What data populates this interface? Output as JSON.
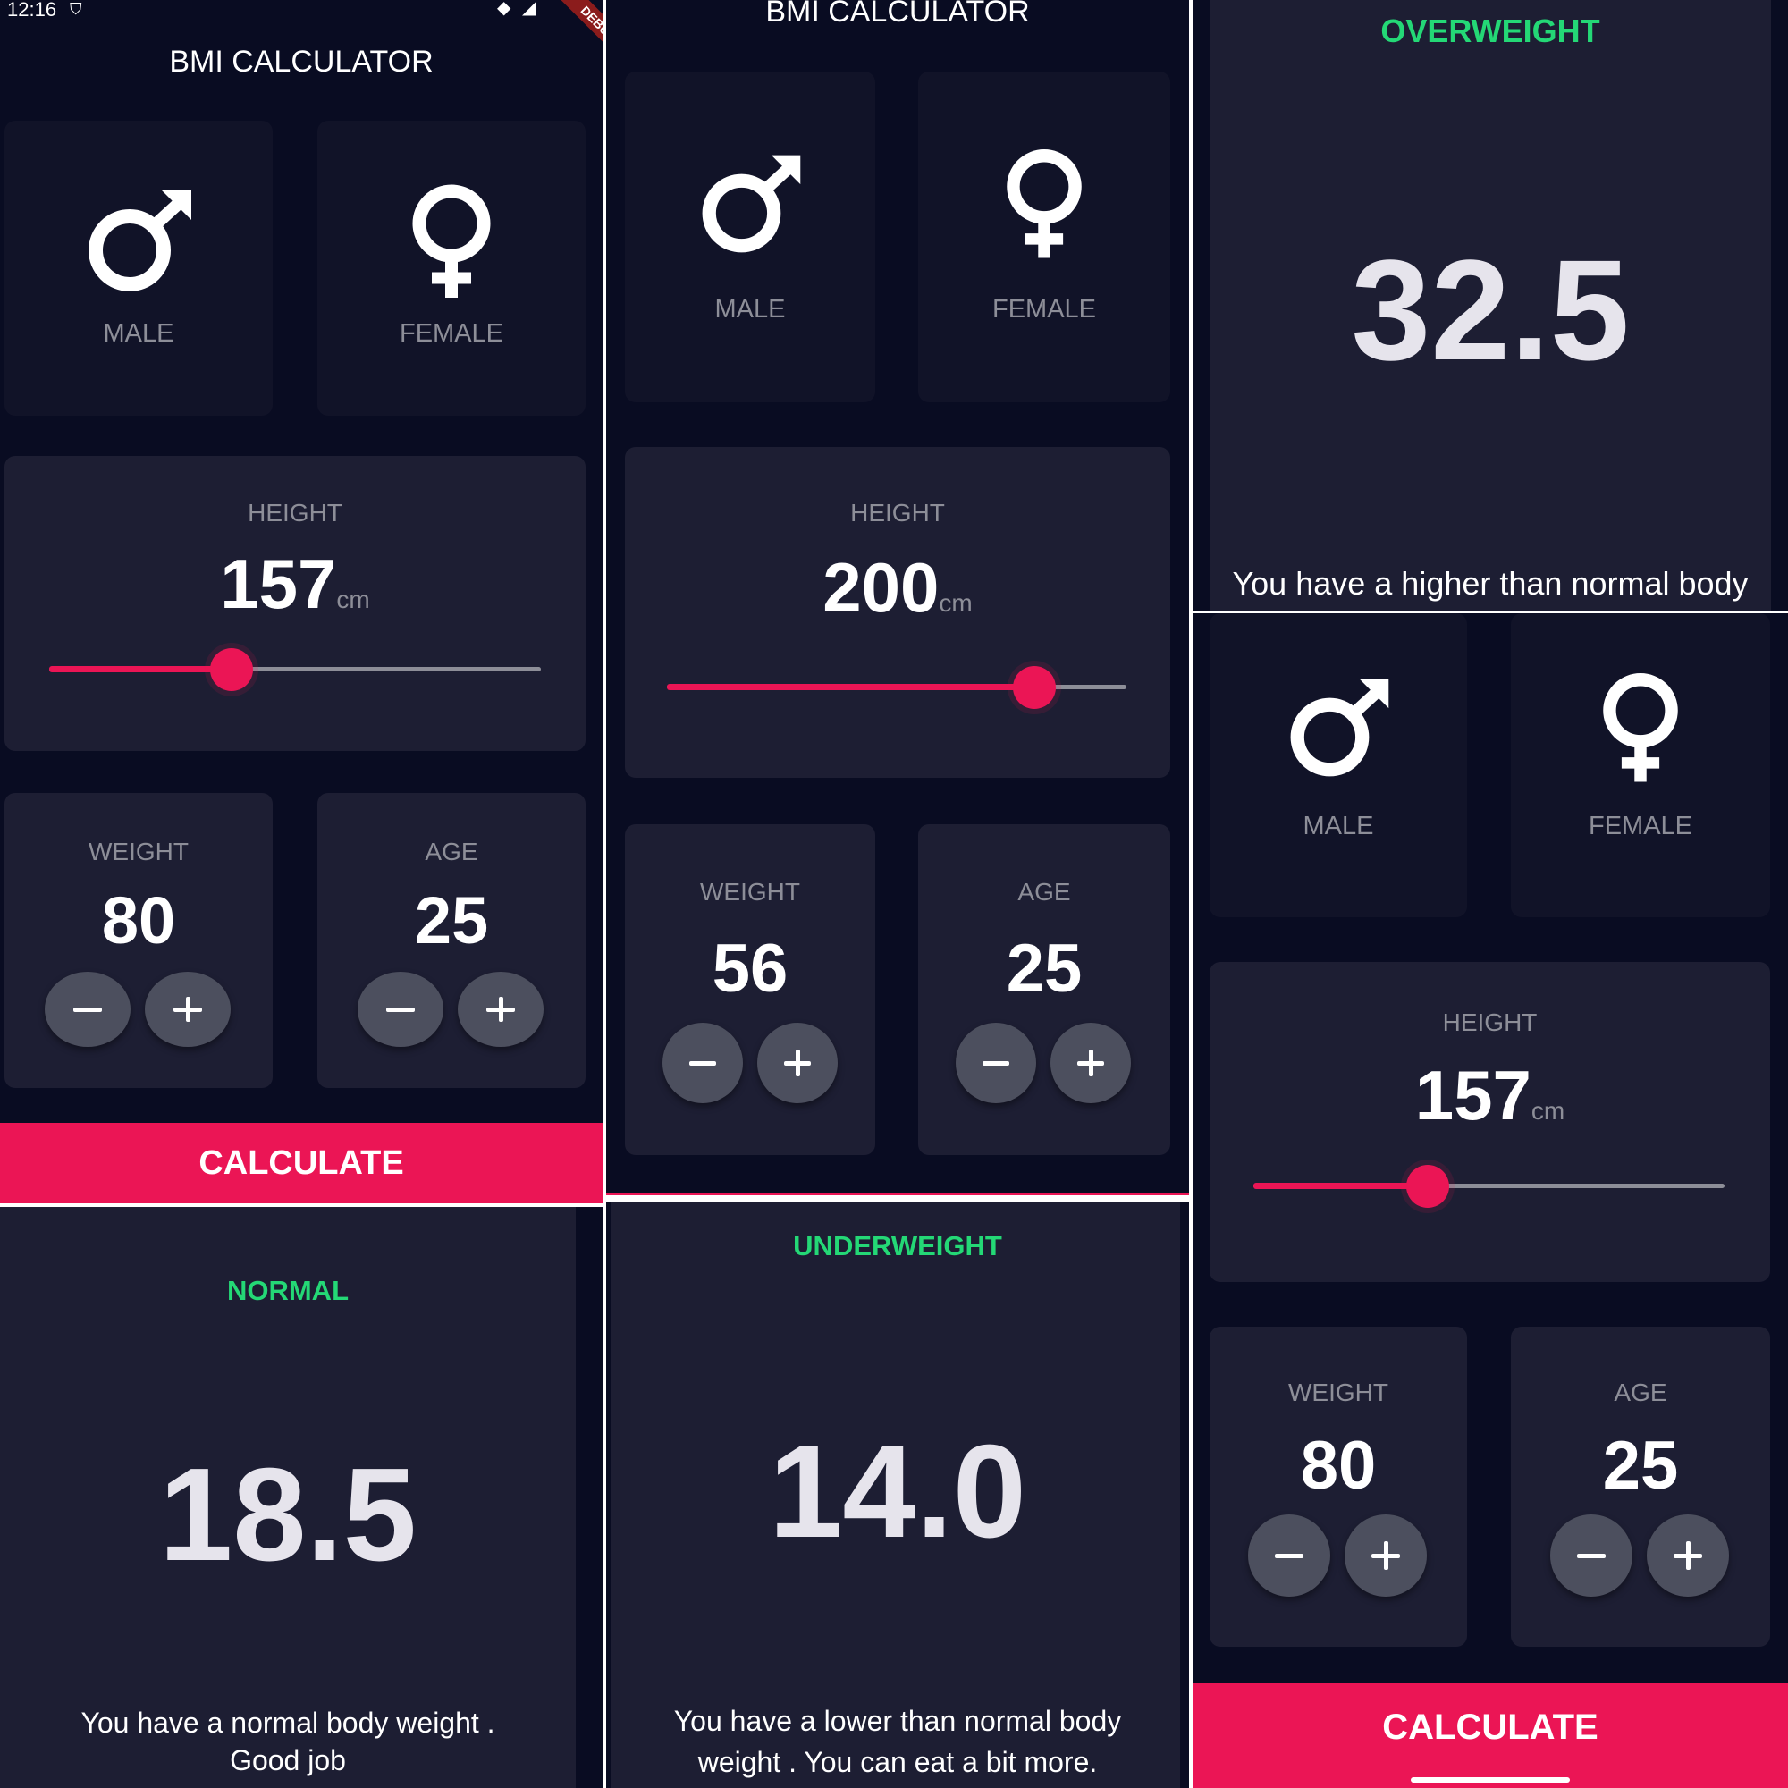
{
  "status_bar": {
    "time": "12:16"
  },
  "debug_banner": "DEBUG",
  "app_title": "BMI CALCULATOR",
  "gender": {
    "male_label": "MALE",
    "female_label": "FEMALE"
  },
  "labels": {
    "height": "HEIGHT",
    "weight": "WEIGHT",
    "age": "AGE",
    "unit": "cm"
  },
  "calculate_label": "CALCULATE",
  "input_screens": [
    {
      "height": "157",
      "weight": "80",
      "age": "25",
      "slider_fraction": 0.37
    },
    {
      "height": "200",
      "weight": "56",
      "age": "25",
      "slider_fraction": 0.8
    },
    {
      "height": "157",
      "weight": "80",
      "age": "25",
      "slider_fraction": 0.37
    }
  ],
  "results": {
    "overweight": {
      "status": "OVERWEIGHT",
      "value": "32.5",
      "text": "You have a higher than normal body"
    },
    "normal": {
      "status": "NORMAL",
      "value": "18.5",
      "text_line1": "You have a normal body weight .",
      "text_line2": "Good job"
    },
    "underweight": {
      "status": "UNDERWEIGHT",
      "value": "14.0",
      "text_line1": "You have a lower than normal body",
      "text_line2": "weight . You can eat a bit more."
    }
  },
  "colors": {
    "accent": "#eb1555",
    "status_green": "#24d876",
    "card": "#1d1e33",
    "background": "#090c22",
    "button": "#4c4f5e"
  },
  "icons": {
    "male": "male-symbol-icon",
    "female": "female-symbol-icon",
    "minus": "minus-icon",
    "plus": "plus-icon"
  }
}
